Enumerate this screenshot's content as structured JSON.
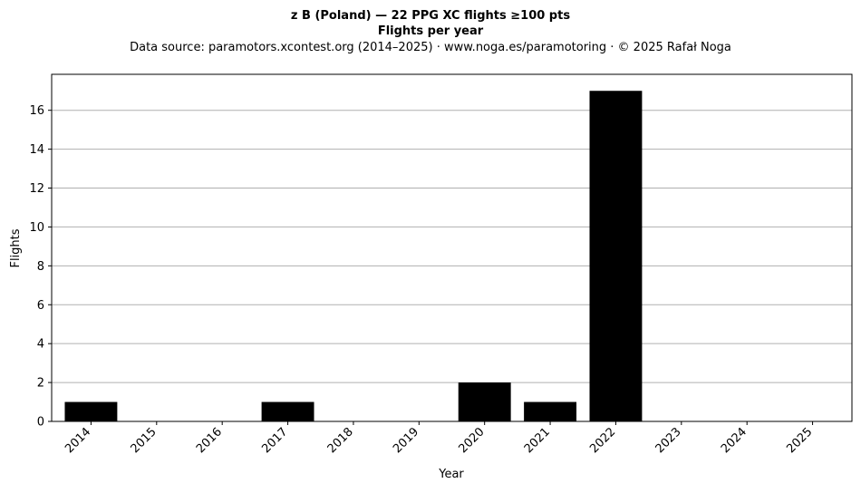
{
  "chart_data": {
    "type": "bar",
    "title": "z B (Poland)  —  22 PPG XC flights ≥100 pts",
    "title_line2": "Flights per year",
    "subtitle": "Data source: paramotors.xcontest.org (2014–2025)  ·  www.noga.es/paramotoring  ·  © 2025 Rafał Noga",
    "xlabel": "Year",
    "ylabel": "Flights",
    "categories": [
      "2014",
      "2015",
      "2016",
      "2017",
      "2018",
      "2019",
      "2020",
      "2021",
      "2022",
      "2023",
      "2024",
      "2025"
    ],
    "values": [
      1,
      0,
      0,
      1,
      0,
      0,
      2,
      1,
      17,
      0,
      0,
      0
    ],
    "ylim": [
      0,
      17.85
    ],
    "yticks": [
      0,
      2,
      4,
      6,
      8,
      10,
      12,
      14,
      16
    ],
    "grid": "y",
    "bar_color": "#000000",
    "grid_color": "#b0b0b0"
  }
}
